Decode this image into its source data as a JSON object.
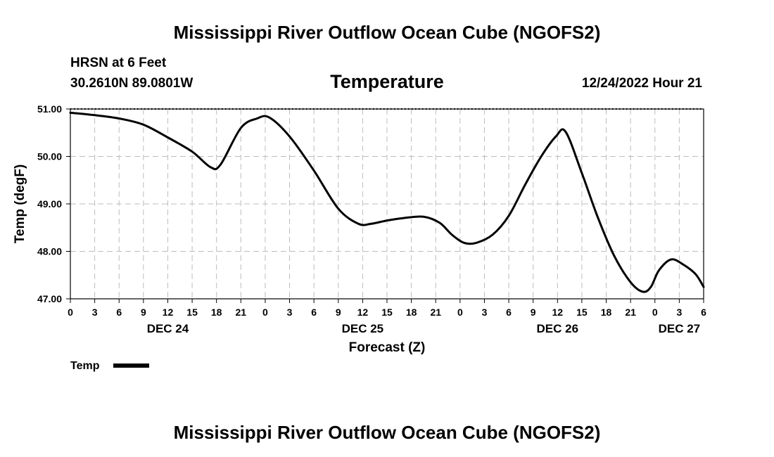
{
  "page": {
    "header_title": "Mississippi River Outflow Ocean Cube (NGOFS2)",
    "footer_title": "Mississippi River Outflow Ocean Cube (NGOFS2)",
    "station": "HRSN at 6 Feet",
    "coords": "30.2610N  89.0801W",
    "timestamp": "12/24/2022 Hour 21"
  },
  "chart_data": {
    "type": "line",
    "title": "Temperature",
    "xlabel": "Forecast (Z)",
    "ylabel": "Temp (degF)",
    "xlim": [
      0,
      78
    ],
    "ylim": [
      47.0,
      51.0
    ],
    "x_unit": "hours since 12/24/2022 00Z",
    "x_tick_values": [
      0,
      3,
      6,
      9,
      12,
      15,
      18,
      21,
      24,
      27,
      30,
      33,
      36,
      39,
      42,
      45,
      48,
      51,
      54,
      57,
      60,
      63,
      66,
      69,
      72,
      75,
      78
    ],
    "x_tick_labels": [
      "0",
      "3",
      "6",
      "9",
      "12",
      "15",
      "18",
      "21",
      "0",
      "3",
      "6",
      "9",
      "12",
      "15",
      "18",
      "21",
      "0",
      "3",
      "6",
      "9",
      "12",
      "15",
      "18",
      "21",
      "0",
      "3",
      "6"
    ],
    "y_ticks": [
      47.0,
      48.0,
      49.0,
      50.0,
      51.0
    ],
    "y_tick_labels": [
      "47.00",
      "48.00",
      "49.00",
      "50.00",
      "51.00"
    ],
    "day_labels": [
      {
        "label": "DEC 24",
        "x": 12
      },
      {
        "label": "DEC 25",
        "x": 36
      },
      {
        "label": "DEC 26",
        "x": 60
      },
      {
        "label": "DEC 27",
        "x": 75
      }
    ],
    "grid": true,
    "legend": {
      "position": "bottom-left",
      "entries": [
        {
          "name": "Temp",
          "color": "#000000"
        }
      ]
    },
    "series": [
      {
        "name": "Temp",
        "color": "#000000",
        "x": [
          0,
          3,
          6,
          9,
          12,
          15,
          17.3,
          18.5,
          21,
          23,
          24.5,
          27,
          30,
          33,
          35.5,
          37,
          39,
          41,
          43.5,
          45.5,
          47,
          48.5,
          50,
          52,
          54,
          56,
          58,
          59.8,
          61,
          63,
          65,
          67,
          69,
          70.5,
          71.5,
          72.5,
          74,
          75.5,
          77,
          78
        ],
        "y": [
          50.92,
          50.87,
          50.8,
          50.67,
          50.4,
          50.1,
          49.77,
          49.83,
          50.6,
          50.8,
          50.82,
          50.42,
          49.7,
          48.9,
          48.58,
          48.58,
          48.65,
          48.7,
          48.73,
          48.6,
          48.35,
          48.18,
          48.18,
          48.35,
          48.75,
          49.4,
          50.0,
          50.42,
          50.52,
          49.65,
          48.7,
          47.9,
          47.35,
          47.15,
          47.25,
          47.6,
          47.83,
          47.72,
          47.52,
          47.25
        ]
      }
    ]
  }
}
